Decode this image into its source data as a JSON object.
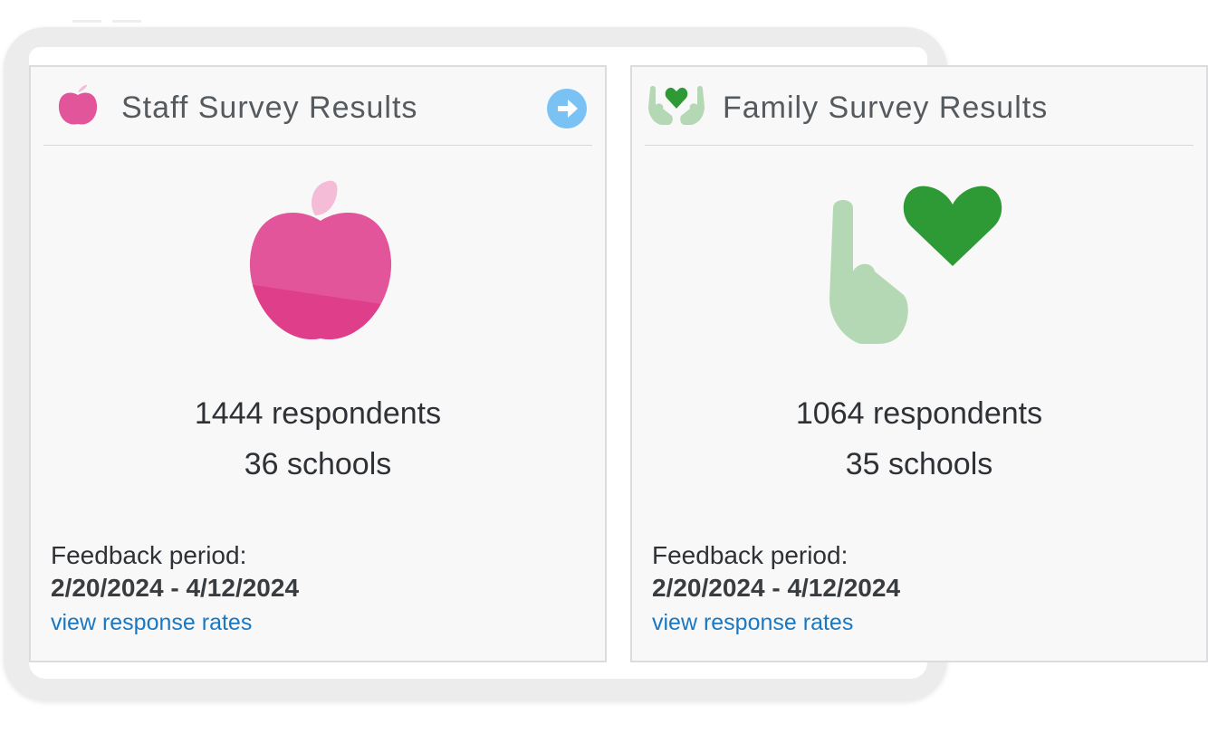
{
  "cards": [
    {
      "title": "Staff Survey Results",
      "icon": "apple-icon",
      "respondents": "1444 respondents",
      "schools": "36 schools",
      "feedback_label": "Feedback period:",
      "feedback_dates": "2/20/2024 - 4/12/2024",
      "link_label": "view response rates",
      "accent": "#e2559a"
    },
    {
      "title": "Family Survey Results",
      "icon": "heart-hands-icon",
      "respondents": "1064 respondents",
      "schools": "35 schools",
      "feedback_label": "Feedback period:",
      "feedback_dates": "2/20/2024 - 4/12/2024",
      "link_label": "view response rates",
      "accent": "#2e9a35"
    }
  ],
  "colors": {
    "link": "#1a78c2",
    "arrow_button": "#79c2f3",
    "hands": "#b5d8b4",
    "heart": "#2e9a35",
    "apple": "#e2559a",
    "leaf": "#f4bcd6"
  }
}
